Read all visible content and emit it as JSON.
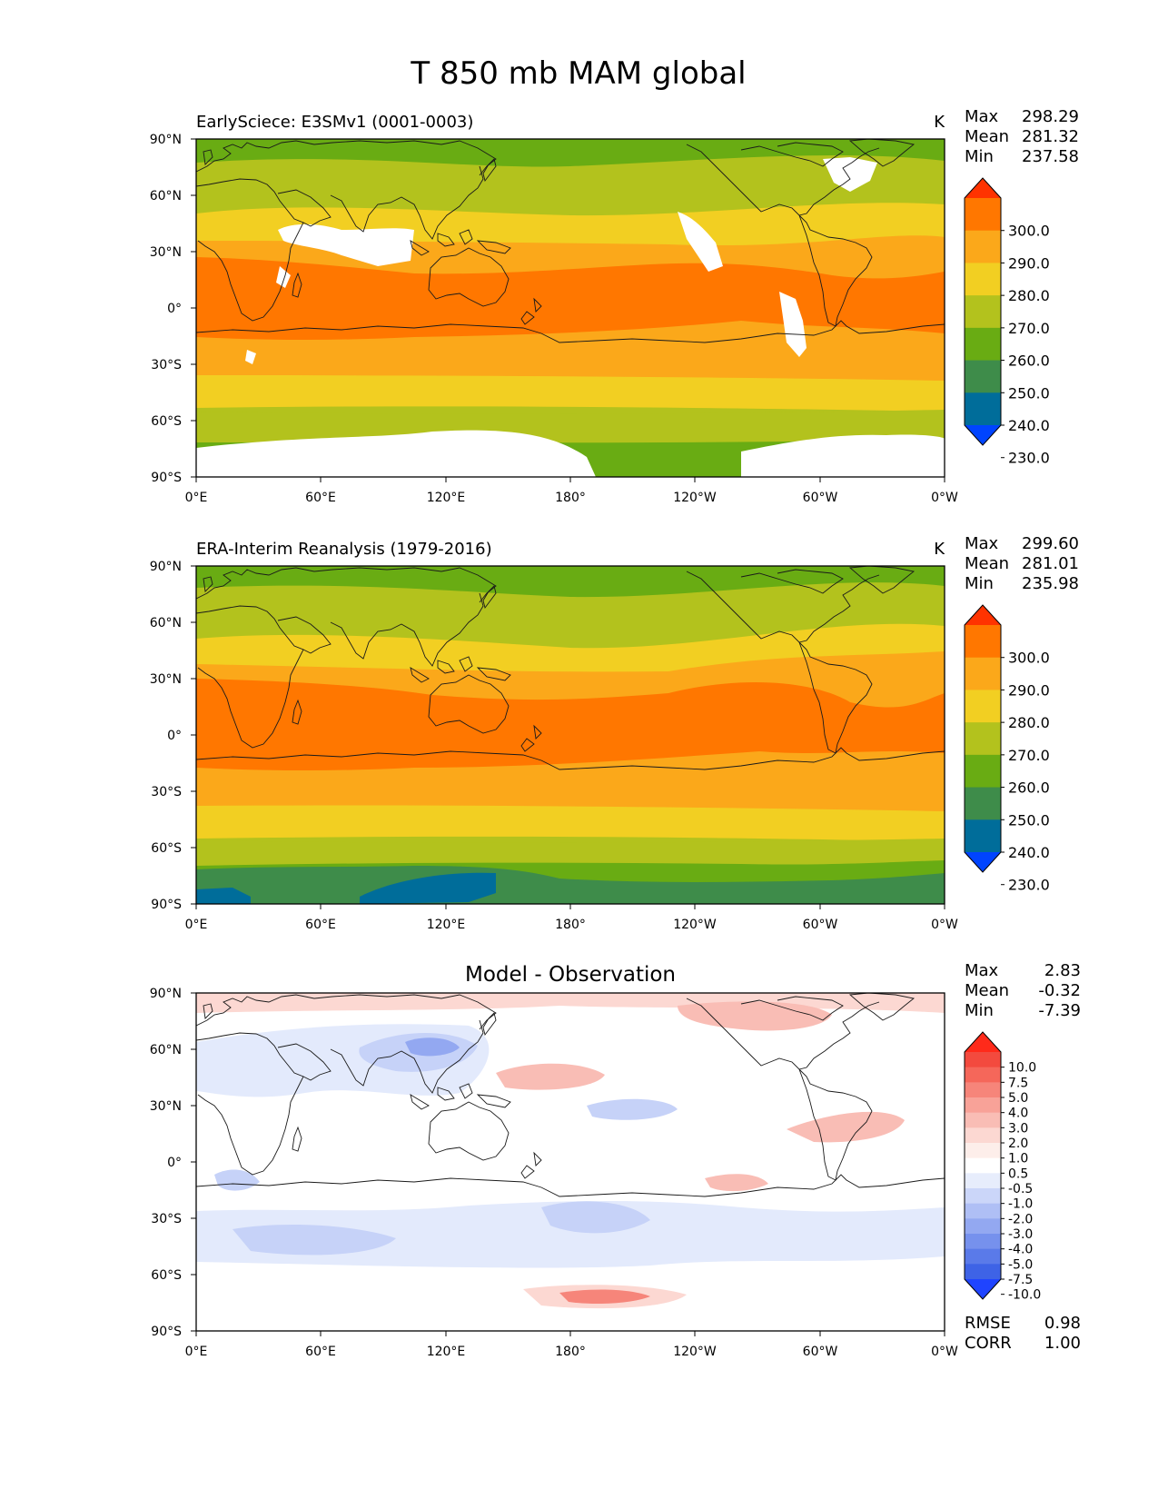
{
  "figure": {
    "title": "T 850 mb MAM global"
  },
  "axes": {
    "lat_ticks": [
      "90°N",
      "60°N",
      "30°N",
      "0°",
      "30°S",
      "60°S",
      "90°S"
    ],
    "lon_ticks": [
      "0°E",
      "60°E",
      "120°E",
      "180°",
      "120°W",
      "60°W",
      "0°W"
    ]
  },
  "panels": [
    {
      "title_left": "EarlySciece: E3SMv1 (0001-0003)",
      "units": "K",
      "stats": [
        {
          "label": "Max",
          "value": "298.29"
        },
        {
          "label": "Mean",
          "value": "281.32"
        },
        {
          "label": "Min",
          "value": "237.58"
        }
      ],
      "colorbar": {
        "labels": [
          "300.0",
          "290.0",
          "280.0",
          "270.0",
          "260.0",
          "250.0",
          "240.0",
          "230.0"
        ],
        "colors": [
          "#ff3300",
          "#ff7700",
          "#fba81a",
          "#f2cf22",
          "#b3c21d",
          "#69ac13",
          "#3e8c4a",
          "#006d9a",
          "#0044ff"
        ]
      }
    },
    {
      "title_left": "ERA-Interim Reanalysis (1979-2016)",
      "units": "K",
      "stats": [
        {
          "label": "Max",
          "value": "299.60"
        },
        {
          "label": "Mean",
          "value": "281.01"
        },
        {
          "label": "Min",
          "value": "235.98"
        }
      ],
      "colorbar": {
        "labels": [
          "300.0",
          "290.0",
          "280.0",
          "270.0",
          "260.0",
          "250.0",
          "240.0",
          "230.0"
        ],
        "colors": [
          "#ff3300",
          "#ff7700",
          "#fba81a",
          "#f2cf22",
          "#b3c21d",
          "#69ac13",
          "#3e8c4a",
          "#006d9a",
          "#0044ff"
        ]
      }
    },
    {
      "title_center": "Model - Observation",
      "stats": [
        {
          "label": "Max",
          "value": "2.83"
        },
        {
          "label": "Mean",
          "value": "-0.32"
        },
        {
          "label": "Min",
          "value": "-7.39"
        }
      ],
      "colorbar": {
        "labels": [
          "10.0",
          "7.5",
          "5.0",
          "4.0",
          "3.0",
          "2.0",
          "1.0",
          "0.5",
          "-0.5",
          "-1.0",
          "-2.0",
          "-3.0",
          "-4.0",
          "-5.0",
          "-7.5",
          "-10.0"
        ],
        "colors": [
          "#ff2a1a",
          "#f34a3e",
          "#f5675a",
          "#f6857a",
          "#f8a298",
          "#f9bdb5",
          "#fcd8d2",
          "#fdeeea",
          "#ffffff",
          "#e7edfc",
          "#cbd6f9",
          "#afbff5",
          "#93a8f1",
          "#7691ed",
          "#5a7ae9",
          "#3e63e6",
          "#1f44ff"
        ]
      },
      "metrics": [
        {
          "label": "RMSE",
          "value": "0.98"
        },
        {
          "label": "CORR",
          "value": "1.00"
        }
      ]
    }
  ],
  "map_colors": {
    "c300": "#ff3300",
    "c290": "#ff7700",
    "c280": "#fba81a",
    "c270": "#f2cf22",
    "c260": "#b3c21d",
    "c250": "#69ac13",
    "c240": "#3e8c4a",
    "c230": "#006d9a",
    "diff_pos1": "#fcd8d2",
    "diff_pos2": "#f9bdb5",
    "diff_pos3": "#f6857a",
    "diff_neg1": "#e3eafc",
    "diff_neg2": "#c6d2f8",
    "diff_neg3": "#93a8f1",
    "diff_neg4": "#5a7ae9"
  }
}
